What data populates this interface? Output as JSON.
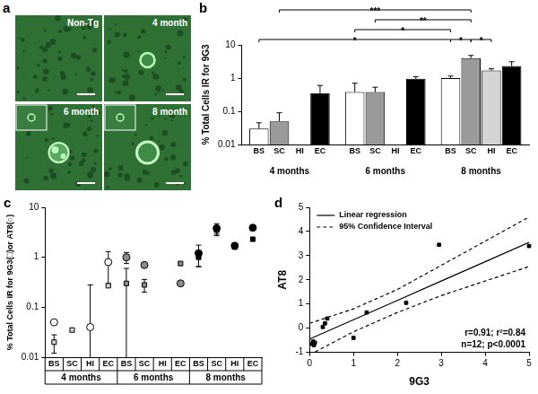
{
  "image_panel": {
    "panel_label": "a",
    "images": [
      "Non-Tg",
      "4 month",
      "6 month",
      "8 month"
    ]
  },
  "chart_data": [
    {
      "panel_label": "b",
      "type": "bar",
      "y_label": "% Total Cells IR for 9G3",
      "categories": [
        "4 months",
        "6 months",
        "8 months"
      ],
      "series": [
        {
          "name": "BS",
          "color": "#ffffff",
          "values": [
            0.03,
            0.38,
            1.0
          ],
          "errors": [
            0.015,
            0.32,
            0.15
          ]
        },
        {
          "name": "SC",
          "color": "#9a9a9a",
          "values": [
            0.05,
            0.38,
            4.0
          ],
          "errors": [
            0.04,
            0.15,
            0.8
          ]
        },
        {
          "name": "HI",
          "color": "#d4d4d4",
          "values": [
            null,
            null,
            1.7
          ],
          "errors": [
            null,
            null,
            0.2
          ]
        },
        {
          "name": "EC",
          "color": "#000000",
          "values": [
            0.35,
            0.95,
            2.3
          ],
          "errors": [
            0.25,
            0.15,
            0.8
          ]
        }
      ],
      "log": "y",
      "ylim": [
        0.01,
        10
      ],
      "yticks": [
        0.01,
        0.1,
        1,
        10
      ],
      "grid": false,
      "annotations": [
        {
          "text": "*",
          "from": [
            "4 months",
            "BS"
          ],
          "to": [
            "8 months",
            "BS"
          ]
        },
        {
          "text": "*",
          "from": [
            "8 months",
            "BS"
          ],
          "to": [
            "8 months",
            "SC"
          ]
        },
        {
          "text": "*",
          "from": [
            "8 months",
            "SC"
          ],
          "to": [
            "8 months",
            "HI"
          ]
        },
        {
          "text": "*",
          "from": [
            "6 months",
            "BS"
          ],
          "to": [
            "8 months",
            "BS"
          ]
        },
        {
          "text": "**",
          "from": [
            "6 months",
            "SC"
          ],
          "to": [
            "8 months",
            "SC"
          ]
        },
        {
          "text": "***",
          "from": [
            "4 months",
            "SC"
          ],
          "to": [
            "8 months",
            "SC"
          ]
        }
      ]
    },
    {
      "panel_label": "c",
      "type": "scatter",
      "y_label": "% Total Cells IR for 9G3(□)or AT8(○)",
      "categories": [
        "BS",
        "SC",
        "HI",
        "EC",
        "BS",
        "SC",
        "HI",
        "EC",
        "BS",
        "SC",
        "HI",
        "EC"
      ],
      "groups": [
        "4 months",
        "6 months",
        "8 months"
      ],
      "series": [
        {
          "name": "9G3",
          "marker": "square",
          "values": [
            0.02,
            0.035,
            null,
            0.27,
            0.3,
            0.28,
            null,
            0.75,
            1.0,
            3.5,
            1.6,
            2.3
          ],
          "errors": [
            0.008,
            null,
            null,
            null,
            0.3,
            0.08,
            null,
            null,
            0.35,
            0.8,
            null,
            null
          ],
          "colors": [
            "#d0d0d0",
            "#d0d0d0",
            "#d0d0d0",
            "#d0d0d0",
            "#8c8c8c",
            "#8c8c8c",
            "#8c8c8c",
            "#8c8c8c",
            "#000000",
            "#000000",
            "#000000",
            "#000000"
          ]
        },
        {
          "name": "AT8",
          "marker": "circle",
          "values": [
            0.05,
            null,
            0.04,
            0.8,
            1.0,
            0.7,
            null,
            0.3,
            1.2,
            3.8,
            1.7,
            3.9
          ],
          "errors": [
            null,
            null,
            0.24,
            0.5,
            0.25,
            null,
            null,
            null,
            0.55,
            0.9,
            null,
            null
          ],
          "colors": [
            "#ffffff",
            "#ffffff",
            "#ffffff",
            "#ffffff",
            "#8c8c8c",
            "#8c8c8c",
            "#8c8c8c",
            "#8c8c8c",
            "#000000",
            "#000000",
            "#000000",
            "#000000"
          ]
        }
      ],
      "log": "y",
      "ylim": [
        0.01,
        10
      ],
      "yticks": [
        0.01,
        0.1,
        1,
        10
      ],
      "grid": false
    },
    {
      "panel_label": "d",
      "type": "scatter",
      "x_label": "9G3",
      "y_label": "AT8",
      "points": {
        "marker": "square",
        "color": "#000000",
        "x": [
          0.05,
          0.08,
          0.1,
          0.12,
          0.3,
          0.35,
          0.4,
          1.0,
          1.3,
          2.2,
          2.95,
          5.0
        ],
        "y": [
          -0.65,
          -0.55,
          -0.7,
          -0.6,
          0.05,
          0.2,
          0.4,
          -0.4,
          0.65,
          1.05,
          3.45,
          3.4
        ]
      },
      "series": [
        {
          "name": "Linear regression",
          "type": "line",
          "line_style": "solid",
          "color": "#000000",
          "x": [
            0,
            1,
            2,
            3,
            4,
            5
          ],
          "values": [
            -0.45,
            0.35,
            1.15,
            1.95,
            2.75,
            3.55
          ]
        },
        {
          "name": "95% Confidence Interval",
          "type": "line",
          "line_style": "dashed",
          "color": "#000000",
          "x": [
            0,
            1,
            2,
            3,
            4,
            5
          ],
          "upper": [
            0.2,
            0.8,
            1.6,
            2.6,
            3.6,
            4.6
          ],
          "lower": [
            -1.1,
            -0.15,
            0.65,
            1.35,
            1.95,
            2.55
          ]
        }
      ],
      "xlim": [
        0,
        5
      ],
      "xticks": [
        0,
        1,
        2,
        3,
        4,
        5
      ],
      "ylim": [
        -1,
        5
      ],
      "yticks": [
        -1,
        0,
        1,
        2,
        3,
        4,
        5
      ],
      "grid": false,
      "legend": "upper left",
      "annotations": [
        "r=0.91; r²=0.84",
        "n=12; p<0.0001"
      ]
    }
  ]
}
